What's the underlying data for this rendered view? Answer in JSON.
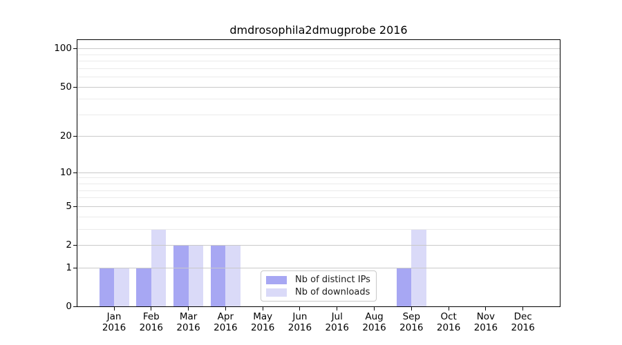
{
  "chart_data": {
    "type": "bar",
    "title": "dmdrosophila2dmugprobe 2016",
    "categories": [
      "Jan 2016",
      "Feb 2016",
      "Mar 2016",
      "Apr 2016",
      "May 2016",
      "Jun 2016",
      "Jul 2016",
      "Aug 2016",
      "Sep 2016",
      "Oct 2016",
      "Nov 2016",
      "Dec 2016"
    ],
    "x_ticks": [
      {
        "month": "Jan",
        "year": "2016"
      },
      {
        "month": "Feb",
        "year": "2016"
      },
      {
        "month": "Mar",
        "year": "2016"
      },
      {
        "month": "Apr",
        "year": "2016"
      },
      {
        "month": "May",
        "year": "2016"
      },
      {
        "month": "Jun",
        "year": "2016"
      },
      {
        "month": "Jul",
        "year": "2016"
      },
      {
        "month": "Aug",
        "year": "2016"
      },
      {
        "month": "Sep",
        "year": "2016"
      },
      {
        "month": "Oct",
        "year": "2016"
      },
      {
        "month": "Nov",
        "year": "2016"
      },
      {
        "month": "Dec",
        "year": "2016"
      }
    ],
    "series": [
      {
        "name": "Nb of distinct IPs",
        "color": "#a7a7f3",
        "values": [
          1,
          1,
          2,
          2,
          0,
          0,
          0,
          0,
          1,
          0,
          0,
          0
        ]
      },
      {
        "name": "Nb of downloads",
        "color": "#dadaf8",
        "values": [
          1,
          3,
          2,
          2,
          0,
          0,
          0,
          0,
          3,
          0,
          0,
          0
        ]
      }
    ],
    "xlabel": "",
    "ylabel": "",
    "yscale": "log1p",
    "ylim": [
      0,
      117
    ],
    "y_major_ticks": [
      0,
      1,
      2,
      5,
      10,
      20,
      50,
      100
    ],
    "y_minor_ticks": [
      3,
      4,
      6,
      7,
      8,
      9,
      30,
      40,
      60,
      70,
      80,
      90
    ],
    "grid": "horizontal",
    "legend_position": "lower center"
  },
  "colors": {
    "background": "#ffffff",
    "axis": "#000000",
    "text": "#000000",
    "grid_major": "#c9c9c9",
    "grid_minor": "#ebebeb",
    "legend_border": "#c8c8c8",
    "bar_distinct_ips": "#a7a7f3",
    "bar_downloads": "#dadaf8"
  }
}
